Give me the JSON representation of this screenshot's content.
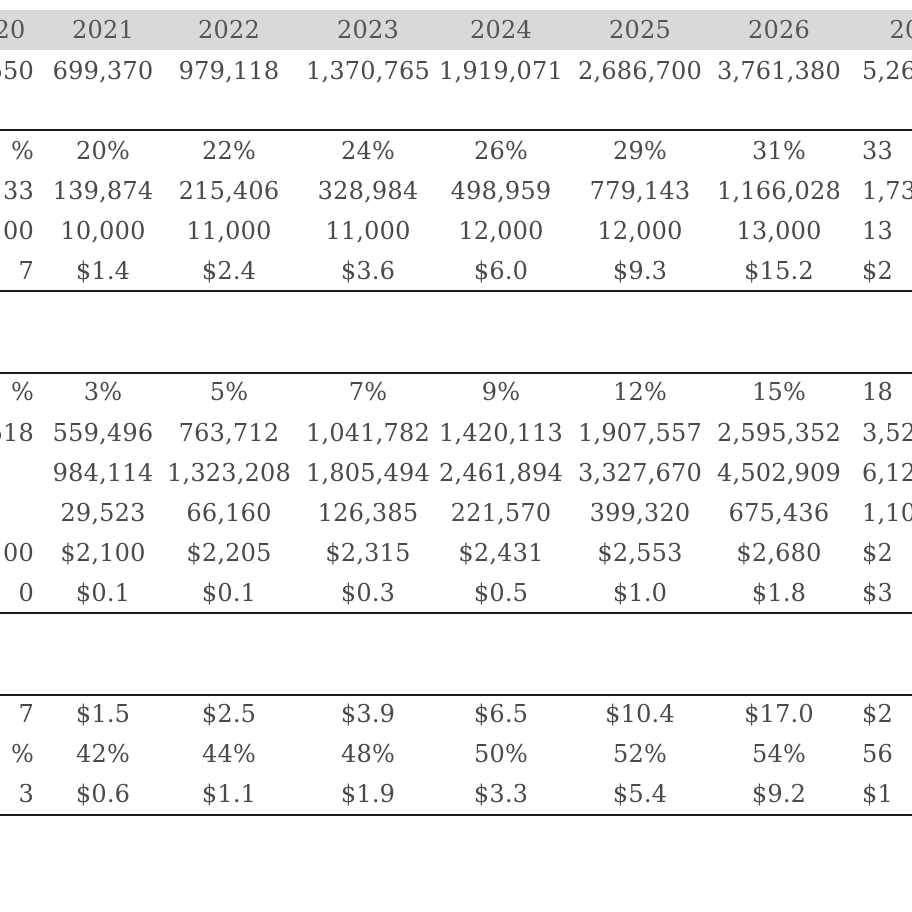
{
  "header": {
    "years": [
      "20",
      "2021",
      "2022",
      "2023",
      "2024",
      "2025",
      "2026",
      "20"
    ]
  },
  "rows": [
    [
      "550",
      "699,370",
      "979,118",
      "1,370,765",
      "1,919,071",
      "2,686,700",
      "3,761,380",
      "5,26"
    ],
    [
      "%",
      "20%",
      "22%",
      "24%",
      "26%",
      "29%",
      "31%",
      "33"
    ],
    [
      "33",
      "139,874",
      "215,406",
      "328,984",
      "498,959",
      "779,143",
      "1,166,028",
      "1,73"
    ],
    [
      "00",
      "10,000",
      "11,000",
      "11,000",
      "12,000",
      "12,000",
      "13,000",
      "13"
    ],
    [
      "7",
      "$1.4",
      "$2.4",
      "$3.6",
      "$6.0",
      "$9.3",
      "$15.2",
      "$2"
    ],
    [
      "%",
      "3%",
      "5%",
      "7%",
      "9%",
      "12%",
      "15%",
      "18"
    ],
    [
      "518",
      "559,496",
      "763,712",
      "1,041,782",
      "1,420,113",
      "1,907,557",
      "2,595,352",
      "3,52"
    ],
    [
      "",
      "984,114",
      "1,323,208",
      "1,805,494",
      "2,461,894",
      "3,327,670",
      "4,502,909",
      "6,12"
    ],
    [
      "",
      "29,523",
      "66,160",
      "126,385",
      "221,570",
      "399,320",
      "675,436",
      "1,10"
    ],
    [
      "00",
      "$2,100",
      "$2,205",
      "$2,315",
      "$2,431",
      "$2,553",
      "$2,680",
      "$2"
    ],
    [
      "0",
      "$0.1",
      "$0.1",
      "$0.3",
      "$0.5",
      "$1.0",
      "$1.8",
      "$3"
    ],
    [
      "7",
      "$1.5",
      "$2.5",
      "$3.9",
      "$6.5",
      "$10.4",
      "$17.0",
      "$2"
    ],
    [
      "%",
      "42%",
      "44%",
      "48%",
      "50%",
      "52%",
      "54%",
      "56"
    ],
    [
      "3",
      "$0.6",
      "$1.1",
      "$1.9",
      "$3.3",
      "$5.4",
      "$9.2",
      "$1"
    ]
  ]
}
